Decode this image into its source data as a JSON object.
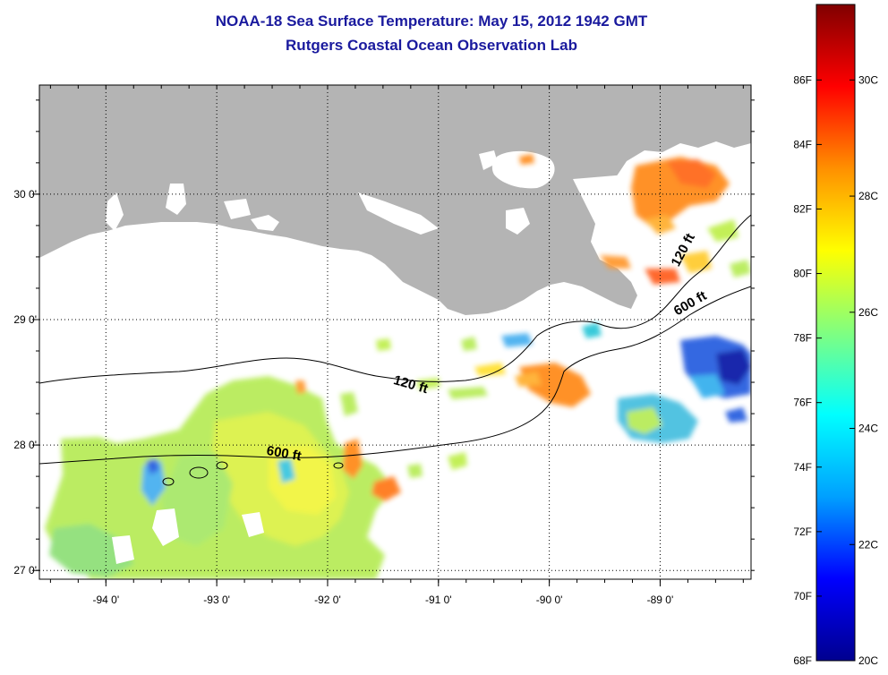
{
  "title": {
    "line1": "NOAA-18 Sea Surface Temperature:  May 15, 2012 1942 GMT",
    "line2": "Rutgers Coastal Ocean Observation Lab"
  },
  "map": {
    "lon_range": [
      -94.6,
      -88.18
    ],
    "lat_range": [
      26.93,
      30.87
    ],
    "lon_ticks": [
      {
        "value": -94,
        "label": "-94 0'"
      },
      {
        "value": -93,
        "label": "-93 0'"
      },
      {
        "value": -92,
        "label": "-92 0'"
      },
      {
        "value": -91,
        "label": "-91 0'"
      },
      {
        "value": -90,
        "label": "-90 0'"
      },
      {
        "value": -89,
        "label": "-89 0'"
      }
    ],
    "lat_ticks": [
      {
        "value": 27,
        "label": "27 0'"
      },
      {
        "value": 28,
        "label": "28 0'"
      },
      {
        "value": 29,
        "label": "29 0'"
      },
      {
        "value": 30,
        "label": "30 0'"
      }
    ],
    "grid": "dotted",
    "land_color": "#b4b4b4",
    "contours": [
      {
        "label": "120 ft",
        "label_lon": -91.26,
        "label_lat": 28.45,
        "angle": 16
      },
      {
        "label": "120 ft",
        "label_lon": -88.76,
        "label_lat": 29.54,
        "angle": -62
      },
      {
        "label": "600 ft",
        "label_lon": -92.4,
        "label_lat": 27.9,
        "angle": 10
      },
      {
        "label": "600 ft",
        "label_lon": -88.71,
        "label_lat": 29.1,
        "angle": -30
      }
    ]
  },
  "colorbar": {
    "temp_c_range": [
      20,
      31.3
    ],
    "fahrenheit_labels": [
      "68F",
      "70F",
      "72F",
      "74F",
      "76F",
      "78F",
      "80F",
      "82F",
      "84F",
      "86F"
    ],
    "celsius_labels": [
      "20C",
      "22C",
      "24C",
      "26C",
      "28C",
      "30C"
    ],
    "colors": [
      "#00008f",
      "#0000ff",
      "#00a0ff",
      "#00ffff",
      "#80ff80",
      "#ffff00",
      "#ff9000",
      "#ff0000",
      "#800000"
    ]
  }
}
